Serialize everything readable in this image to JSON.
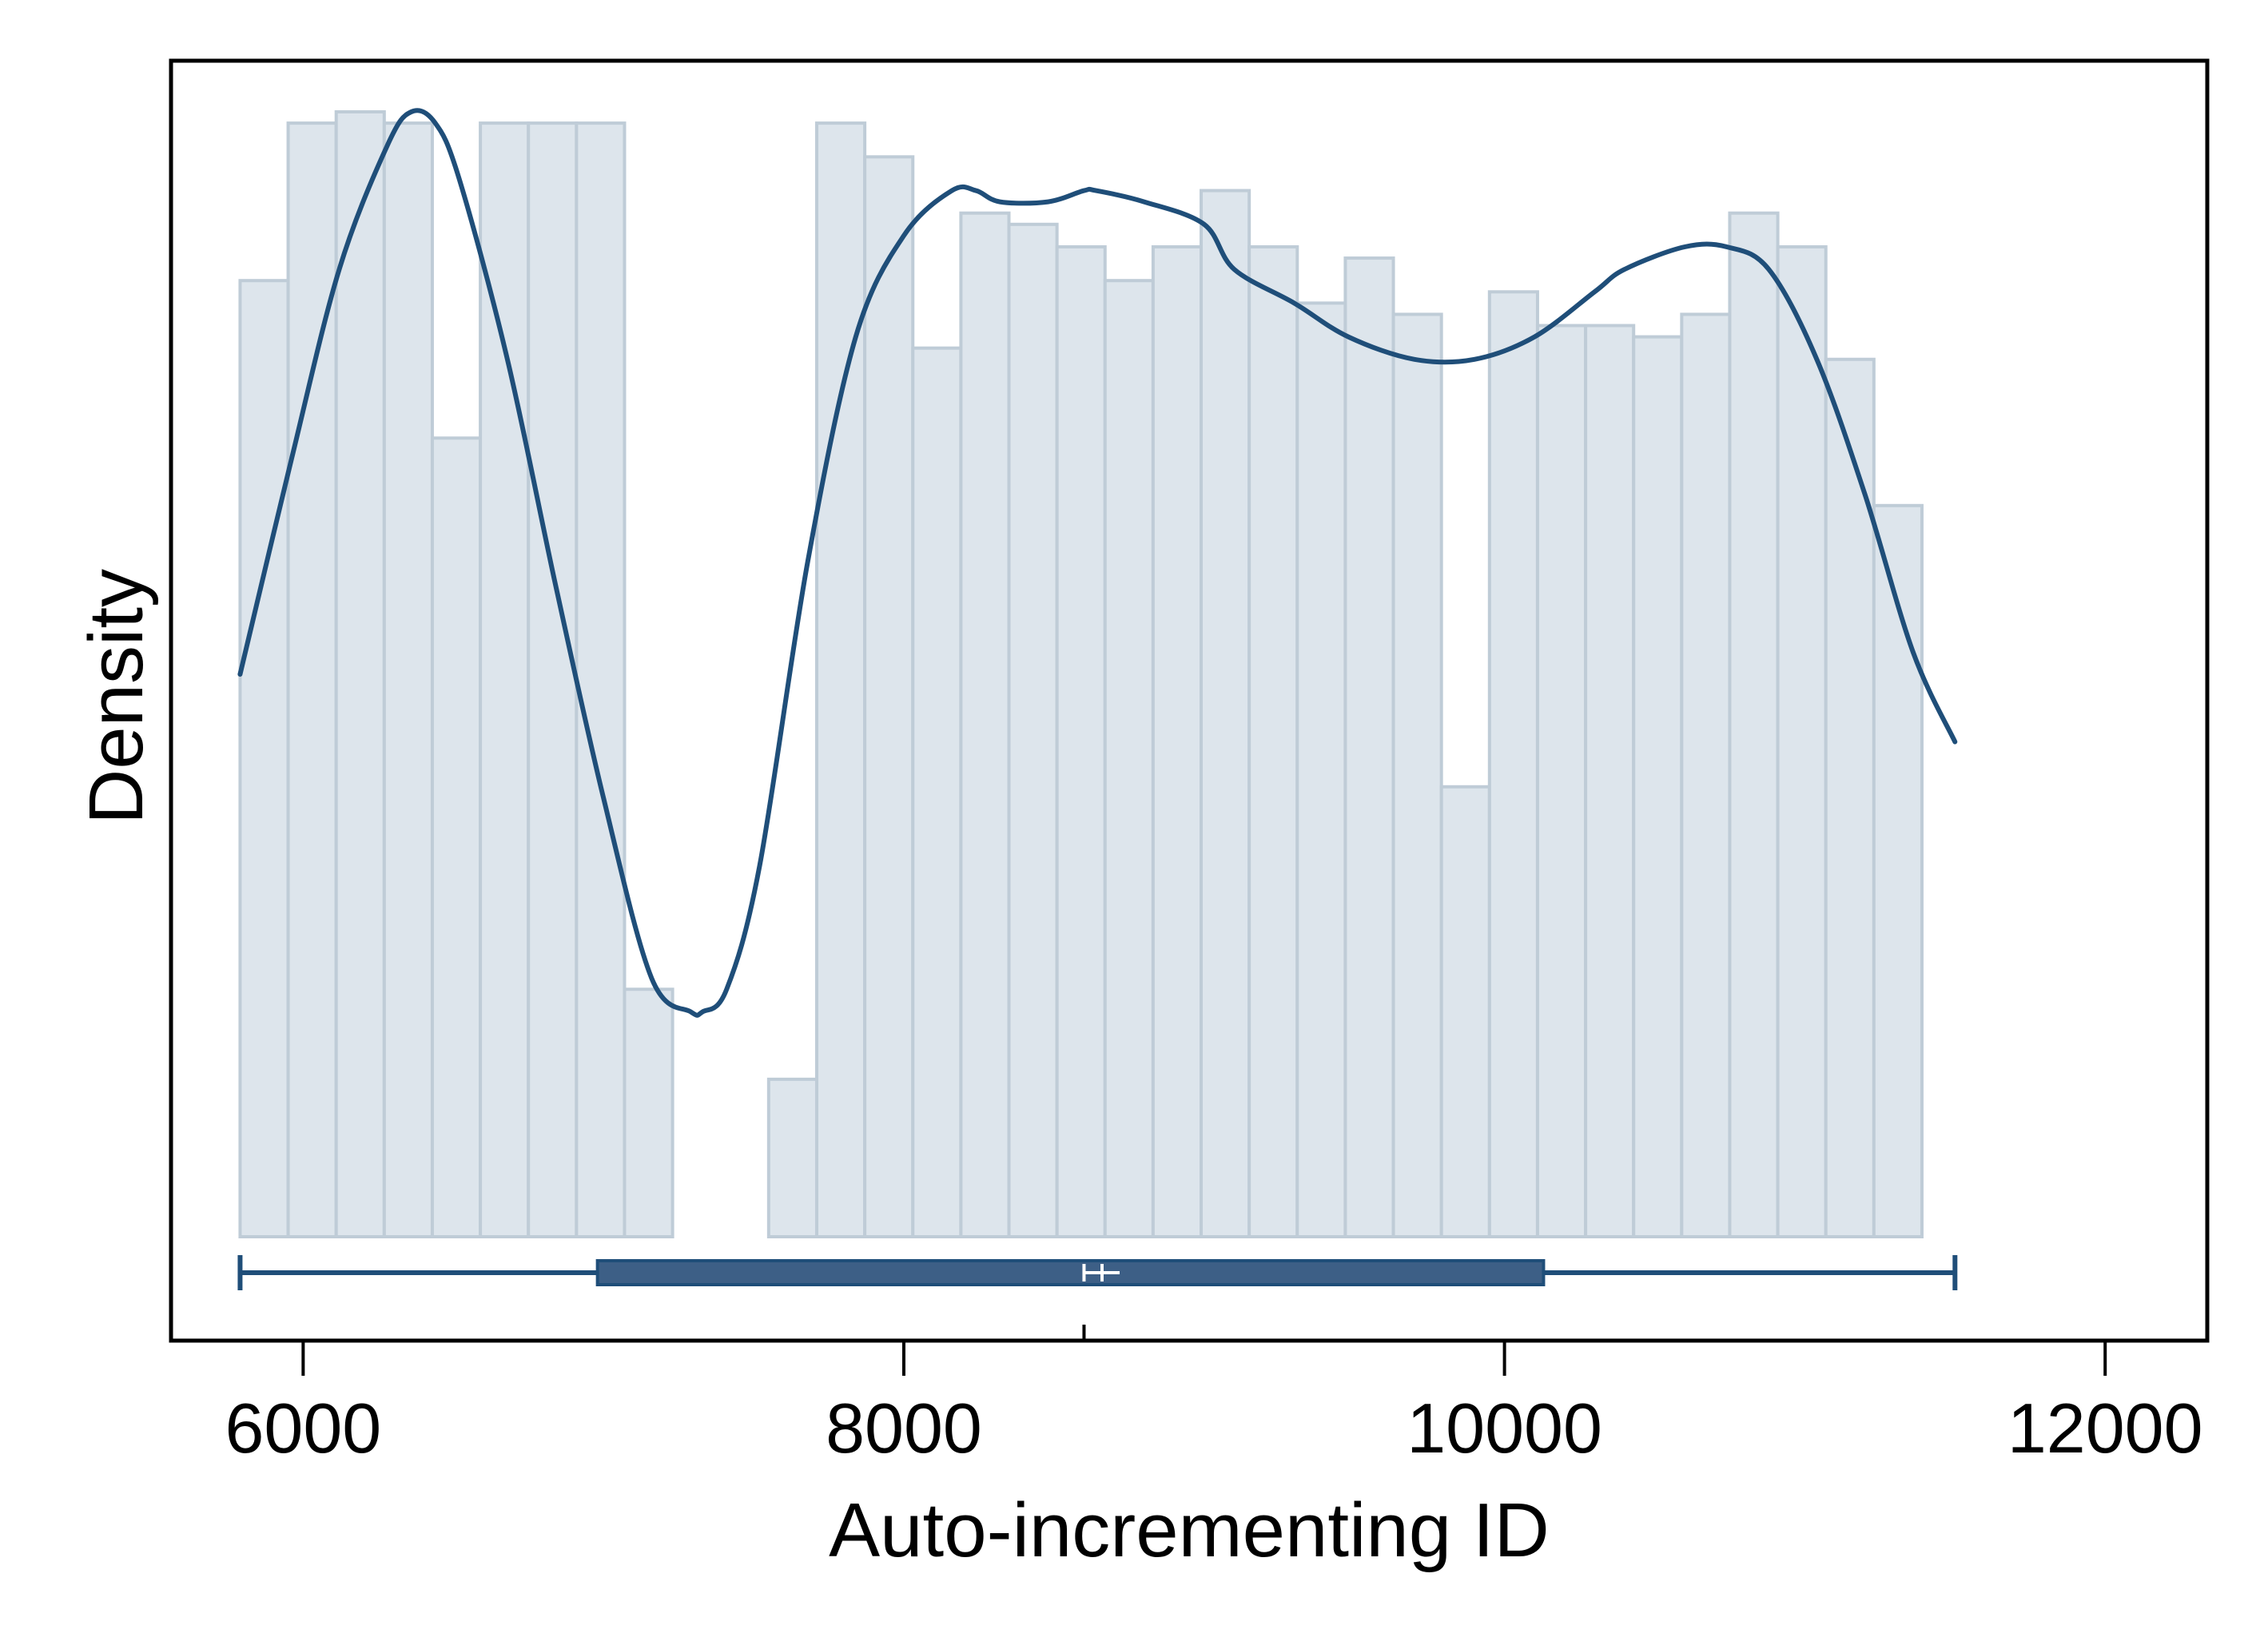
{
  "chart_data": {
    "type": "histogram",
    "overlay": [
      "kernel-density",
      "box-plot"
    ],
    "xlabel": "Auto-incrementing ID",
    "ylabel": "Density",
    "xlim": [
      5560,
      12340
    ],
    "xticks": [
      "6000",
      "8000",
      "10000",
      "12000"
    ],
    "xtick_values": [
      6000,
      8000,
      10000,
      12000
    ],
    "grid": false,
    "legend": "none",
    "histogram": {
      "bin_start": 5790,
      "bin_width": 160,
      "relative_heights": [
        0.85,
        0.99,
        1.0,
        0.99,
        0.71,
        0.99,
        0.99,
        0.99,
        0.22,
        0,
        0,
        0.14,
        0.99,
        0.96,
        0.79,
        0.91,
        0.9,
        0.88,
        0.85,
        0.88,
        0.93,
        0.88,
        0.83,
        0.87,
        0.82,
        0.4,
        0.84,
        0.81,
        0.81,
        0.8,
        0.82,
        0.91,
        0.88,
        0.78,
        0.65
      ]
    },
    "density_curve": {
      "x": [
        5790,
        5960,
        6120,
        6280,
        6360,
        6440,
        6520,
        6680,
        6840,
        7000,
        7160,
        7290,
        7330,
        7410,
        7520,
        7680,
        7840,
        8000,
        8160,
        8240,
        8320,
        8480,
        8600,
        8640,
        8800,
        9000,
        9100,
        9300,
        9480,
        9700,
        9900,
        10100,
        10300,
        10400,
        10600,
        10740,
        10880,
        11040,
        11200,
        11360,
        11500
      ],
      "y": [
        0.5,
        0.69,
        0.86,
        0.97,
        1.0,
        0.99,
        0.94,
        0.78,
        0.58,
        0.39,
        0.23,
        0.2,
        0.2,
        0.22,
        0.33,
        0.6,
        0.8,
        0.89,
        0.93,
        0.93,
        0.92,
        0.92,
        0.93,
        0.93,
        0.92,
        0.9,
        0.86,
        0.83,
        0.8,
        0.78,
        0.78,
        0.8,
        0.84,
        0.86,
        0.88,
        0.88,
        0.86,
        0.78,
        0.66,
        0.52,
        0.44
      ]
    },
    "box_plot": {
      "min": 5790,
      "q1": 6980,
      "median": 8600,
      "mean": 8660,
      "q3": 10130,
      "max": 11500
    },
    "colors": {
      "bar_fill": "#dde5ec",
      "bar_stroke": "#bfccd7",
      "line": "#1f4e79",
      "box_fill": "#3d5f86",
      "axis": "#000000"
    }
  }
}
